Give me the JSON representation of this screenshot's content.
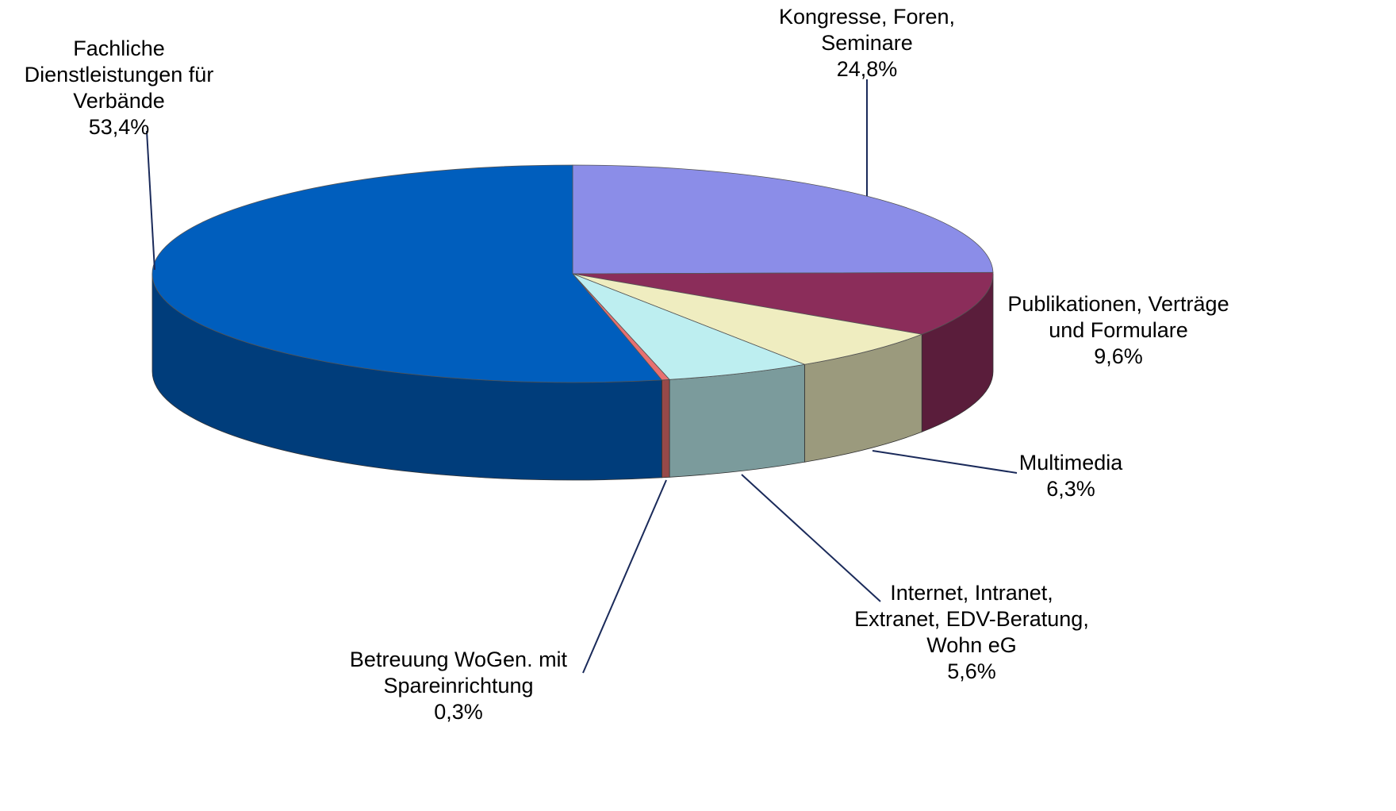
{
  "chart_data": {
    "type": "pie3d",
    "categories": [
      "Kongresse, Foren, Seminare",
      "Publikationen, Verträge und Formulare",
      "Multimedia",
      "Internet, Intranet, Extranet, EDV-Beratung, Wohn eG",
      "Betreuung WoGen. mit Spareinrichtung",
      "Fachliche Dienstleistungen für Verbände"
    ],
    "values": [
      24.8,
      9.6,
      6.3,
      5.6,
      0.3,
      53.4
    ],
    "value_labels": [
      "24,8%",
      "9,6%",
      "6,3%",
      "5,6%",
      "0,3%",
      "53,4%"
    ],
    "colors": [
      "#8b8de8",
      "#8b2d5a",
      "#efedc0",
      "#bdeef0",
      "#e87070",
      "#005ebd"
    ]
  }
}
